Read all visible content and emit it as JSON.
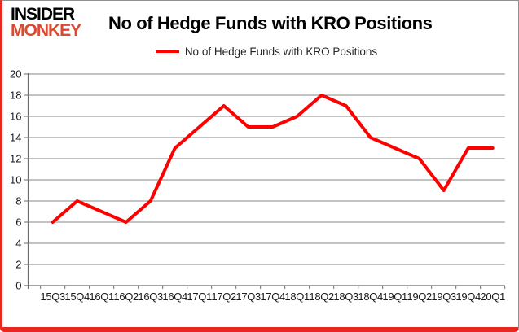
{
  "brand": {
    "line1": "INSIDER",
    "line2": "MONKEY",
    "line1_color": "#000000",
    "line2_color": "#d94a30"
  },
  "header": {
    "title": "No of Hedge Funds with KRO Positions"
  },
  "legend": {
    "label": "No of Hedge Funds with KRO Positions",
    "line_color": "#ff0000"
  },
  "chart_data": {
    "type": "line",
    "title": "No of Hedge Funds with KRO Positions",
    "categories": [
      "15Q3",
      "15Q4",
      "16Q1",
      "16Q2",
      "16Q3",
      "16Q4",
      "17Q1",
      "17Q2",
      "17Q3",
      "17Q4",
      "18Q1",
      "18Q2",
      "18Q3",
      "18Q4",
      "19Q1",
      "19Q2",
      "19Q3",
      "19Q4",
      "20Q1"
    ],
    "series": [
      {
        "name": "No of Hedge Funds with KRO Positions",
        "color": "#ff0000",
        "values": [
          6,
          8,
          7,
          6,
          8,
          13,
          15,
          17,
          15,
          15,
          16,
          18,
          17,
          14,
          13,
          12,
          9,
          13,
          13
        ]
      }
    ],
    "ylim": [
      0,
      20
    ],
    "ytick_step": 2,
    "yticks": [
      0,
      2,
      4,
      6,
      8,
      10,
      12,
      14,
      16,
      18,
      20
    ],
    "grid": "horizontal",
    "gridline_color": "#878787",
    "axis_color": "#6b6b6b",
    "legend_position": "top"
  }
}
